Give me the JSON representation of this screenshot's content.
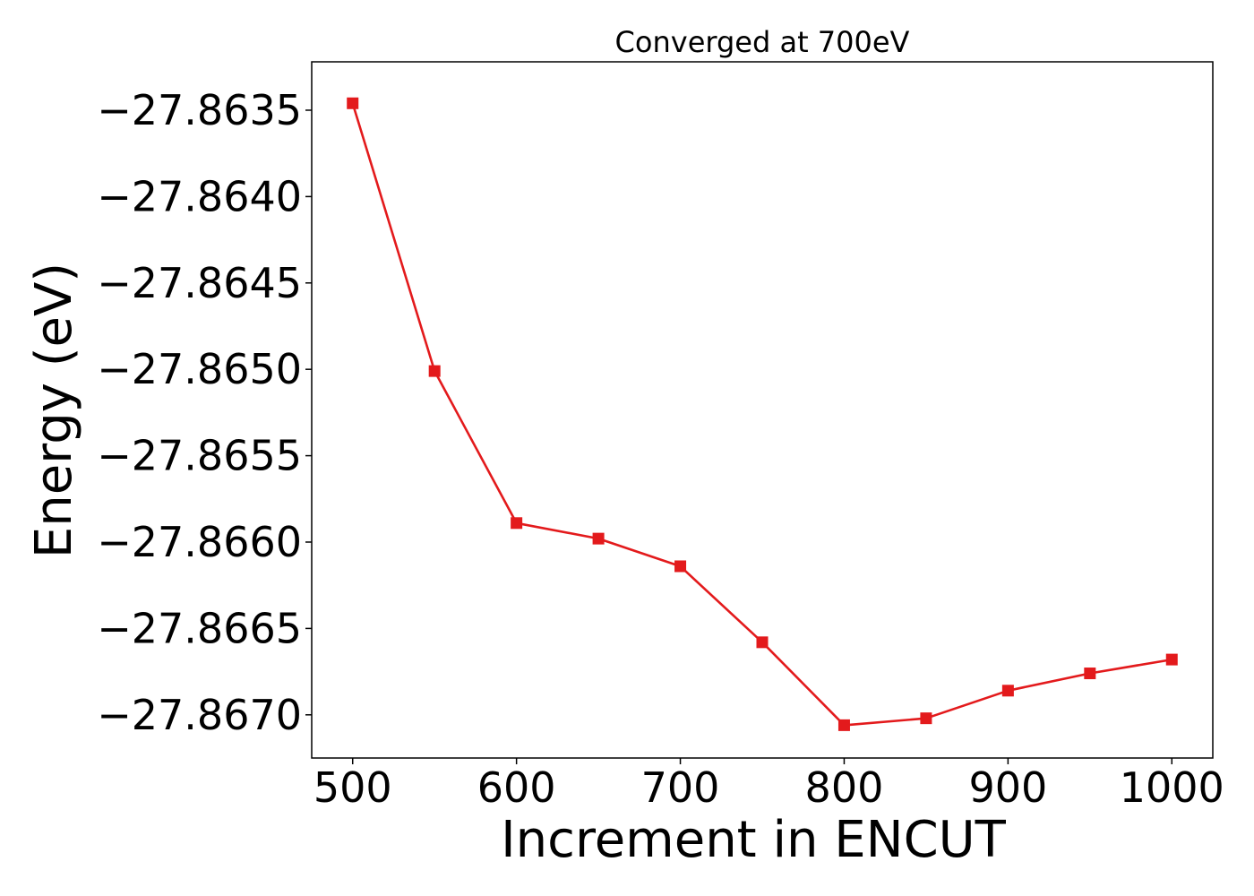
{
  "chart_data": {
    "type": "line",
    "title": "Converged at 700eV",
    "xlabel": "Increment in ENCUT",
    "ylabel": "Energy (eV)",
    "xlim": [
      475,
      1025
    ],
    "ylim": [
      -27.86725,
      -27.86322
    ],
    "xticks": [
      500,
      600,
      700,
      800,
      900,
      1000
    ],
    "xtick_labels": [
      "500",
      "600",
      "700",
      "800",
      "900",
      "1000"
    ],
    "yticks": [
      -27.8635,
      -27.864,
      -27.8645,
      -27.865,
      -27.8655,
      -27.866,
      -27.8665,
      -27.867
    ],
    "ytick_labels": [
      "−27.8635",
      "−27.8640",
      "−27.8645",
      "−27.8650",
      "−27.8655",
      "−27.8660",
      "−27.8665",
      "−27.8670"
    ],
    "grid": false,
    "legend": "none",
    "series": [
      {
        "color": "#e31a1c",
        "marker": "square",
        "x": [
          500,
          550,
          600,
          650,
          700,
          750,
          800,
          850,
          900,
          950,
          1000
        ],
        "y": [
          -27.86346,
          -27.86501,
          -27.86589,
          -27.86598,
          -27.86614,
          -27.86658,
          -27.86706,
          -27.86702,
          -27.86686,
          -27.86676,
          -27.86668
        ]
      }
    ]
  }
}
